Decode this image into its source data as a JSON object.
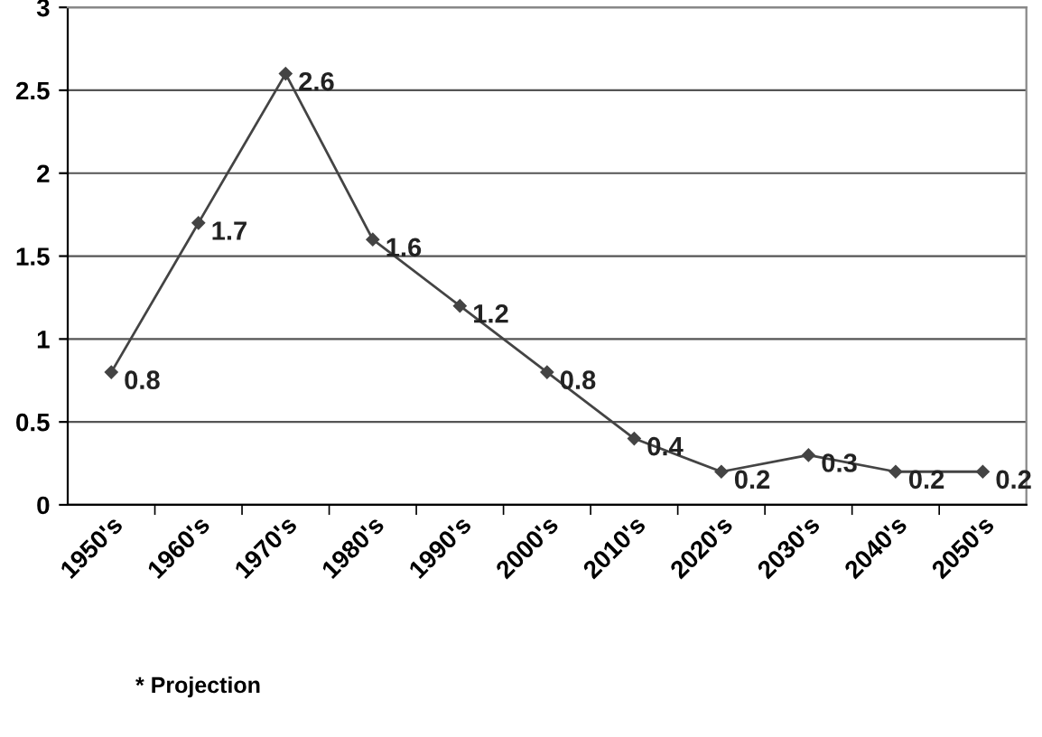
{
  "chart_data": {
    "type": "line",
    "categories": [
      "1950's",
      "1960's",
      "1970's",
      "1980's",
      "1990's",
      "2000's",
      "2010's",
      "2020's",
      "2030's",
      "2040's",
      "2050's"
    ],
    "series": [
      {
        "color": "#444444",
        "values": [
          0.8,
          1.7,
          2.6,
          1.6,
          1.2,
          0.8,
          0.4,
          0.2,
          0.3,
          0.2,
          0.2
        ]
      }
    ],
    "ylim": [
      0,
      3
    ],
    "yticks": [
      0,
      0.5,
      1,
      1.5,
      2,
      2.5,
      3
    ],
    "grid": "y",
    "marker": "diamond",
    "line_style": "solid",
    "data_labels": true,
    "annotations": [
      "* Projection"
    ]
  }
}
